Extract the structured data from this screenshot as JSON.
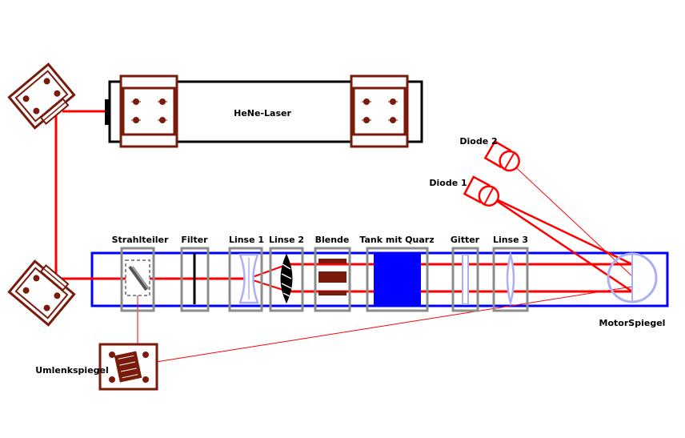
{
  "labels": {
    "laser": "HeNe-Laser",
    "beam_splitter": "Strahlteiler",
    "filter": "Filter",
    "lens1": "Linse 1",
    "lens2": "Linse 2",
    "aperture": "Blende",
    "tank": "Tank mit Quarz",
    "grating": "Gitter",
    "lens3": "Linse 3",
    "motor_mirror": "MotorSpiegel",
    "diode1": "Diode 1",
    "diode2": "Diode 2",
    "deflection_mirror": "Umlenkspiegel"
  },
  "colors": {
    "beam": "#ff0000",
    "rail": "#0000ff",
    "mount": "#7a1a0a",
    "holder": "#8c8c8c",
    "lens": "#aab0f0",
    "tank": "#0000ff",
    "laser_body": "#000000"
  }
}
